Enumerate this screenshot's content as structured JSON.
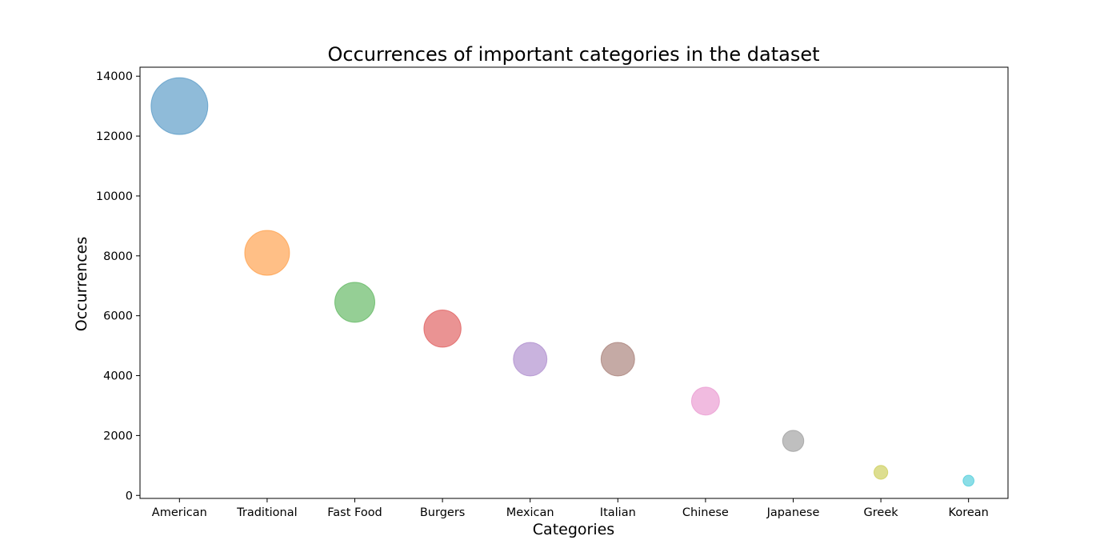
{
  "chart_data": {
    "type": "scatter",
    "title": "Occurrences of important categories in the dataset",
    "xlabel": "Categories",
    "ylabel": "Occurrences",
    "ylim": [
      -100,
      14300
    ],
    "yticks": [
      0,
      2000,
      4000,
      6000,
      8000,
      10000,
      12000,
      14000
    ],
    "grid": false,
    "categories": [
      "American",
      "Traditional",
      "Fast Food",
      "Burgers",
      "Mexican",
      "Italian",
      "Chinese",
      "Japanese",
      "Greek",
      "Korean"
    ],
    "values": [
      13000,
      8100,
      6450,
      5570,
      4550,
      4550,
      3150,
      1820,
      770,
      490
    ],
    "colors": [
      "#1f77b4",
      "#ff7f0e",
      "#2ca02c",
      "#d62728",
      "#9467bd",
      "#8c564b",
      "#e377c2",
      "#7f7f7f",
      "#bcbd22",
      "#17becf"
    ],
    "marker_size_encodes": "values",
    "alpha": 0.5
  }
}
